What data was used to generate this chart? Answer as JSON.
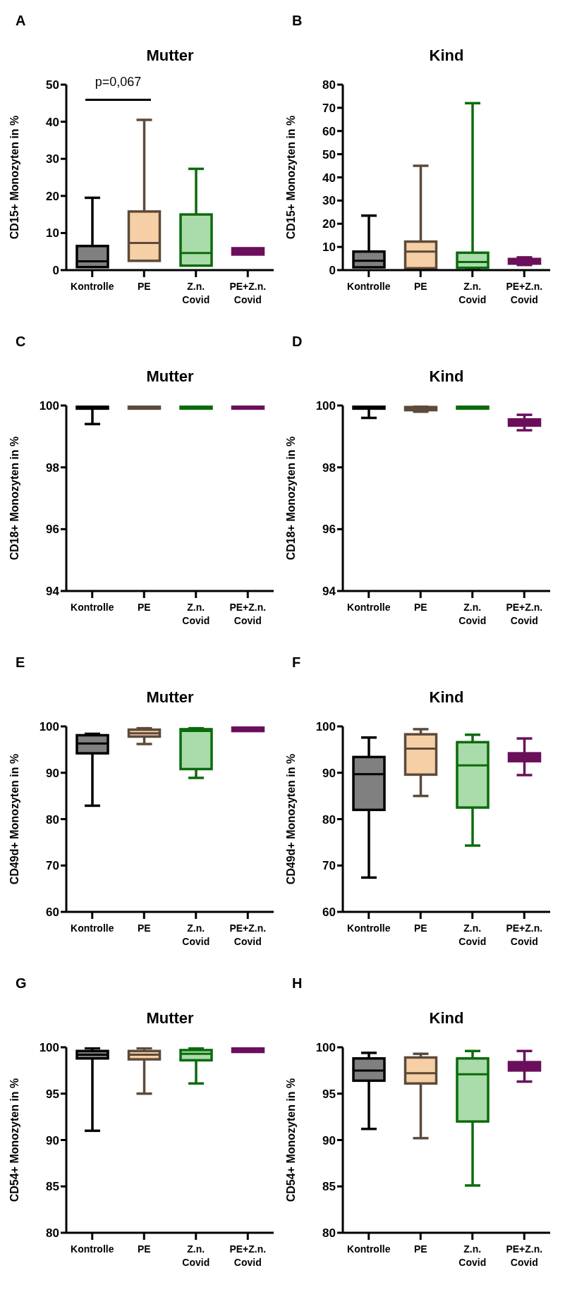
{
  "chart_data": [
    {
      "type": "box",
      "title": "Mutter",
      "ylabel": "CD15+ Monozyten in %",
      "annotations": [
        "A",
        "p=0,067"
      ],
      "categories": [
        "Kontrolle",
        "PE",
        "Z.n. Covid",
        "PE+Z.n. Covid"
      ],
      "colors": [
        "#000000",
        "#5c4a3a",
        "#0b6b0b",
        "#6b0f5b"
      ],
      "ylim": [
        0,
        50
      ],
      "yticks": [
        0,
        10,
        20,
        30,
        40,
        50
      ],
      "boxes": [
        {
          "low": null,
          "q1": 0.8,
          "median": 2.4,
          "q3": 6.5,
          "high": 19.5
        },
        {
          "low": null,
          "q1": 2.5,
          "median": 7.3,
          "q3": 15.8,
          "high": 40.5
        },
        {
          "low": null,
          "q1": 1.2,
          "median": 4.6,
          "q3": 15,
          "high": 27.3
        },
        {
          "low": 4.2,
          "q1": 4.2,
          "median": 5,
          "q3": 5.9,
          "high": 5.9
        }
      ]
    },
    {
      "type": "box",
      "title": "Kind",
      "ylabel": "CD15+ Monozyten in %",
      "annotations": [
        "B"
      ],
      "categories": [
        "Kontrolle",
        "PE",
        "Z.n. Covid",
        "PE+Z.n. Covid"
      ],
      "colors": [
        "#000000",
        "#5c4a3a",
        "#0b6b0b",
        "#6b0f5b"
      ],
      "ylim": [
        0,
        80
      ],
      "yticks": [
        0,
        10,
        20,
        30,
        40,
        50,
        60,
        70,
        80
      ],
      "boxes": [
        {
          "low": null,
          "q1": 1.2,
          "median": 4,
          "q3": 8,
          "high": 23.5
        },
        {
          "low": 0.2,
          "q1": 0.8,
          "median": 8,
          "q3": 12.3,
          "high": 45
        },
        {
          "low": 0.2,
          "q1": 1,
          "median": 3.5,
          "q3": 7.5,
          "high": 72
        },
        {
          "low": 2.2,
          "q1": 2.8,
          "median": 4,
          "q3": 4.8,
          "high": 5.5
        }
      ]
    },
    {
      "type": "box",
      "title": "Mutter",
      "ylabel": "CD18+ Monozyten in %",
      "annotations": [
        "C"
      ],
      "categories": [
        "Kontrolle",
        "PE",
        "Z.n. Covid",
        "PE+Z.n. Covid"
      ],
      "colors": [
        "#000000",
        "#5c4a3a",
        "#0b6b0b",
        "#6b0f5b"
      ],
      "ylim": [
        94,
        100
      ],
      "yticks": [
        94,
        96,
        98,
        100
      ],
      "boxes": [
        {
          "low": 99.4,
          "q1": 99.9,
          "median": 99.95,
          "q3": 99.97,
          "high": 99.97
        },
        {
          "low": 99.9,
          "q1": 99.9,
          "median": 99.95,
          "q3": 99.98,
          "high": 99.98
        },
        {
          "low": 99.9,
          "q1": 99.9,
          "median": 99.95,
          "q3": 99.98,
          "high": 99.98
        },
        {
          "low": 99.9,
          "q1": 99.9,
          "median": 99.95,
          "q3": 99.98,
          "high": 99.98
        }
      ]
    },
    {
      "type": "box",
      "title": "Kind",
      "ylabel": "CD18+ Monozyten in %",
      "annotations": [
        "D"
      ],
      "categories": [
        "Kontrolle",
        "PE",
        "Z.n. Covid",
        "PE+Z.n. Covid"
      ],
      "colors": [
        "#000000",
        "#5c4a3a",
        "#0b6b0b",
        "#6b0f5b"
      ],
      "ylim": [
        94,
        100
      ],
      "yticks": [
        94,
        96,
        98,
        100
      ],
      "boxes": [
        {
          "low": 99.6,
          "q1": 99.9,
          "median": 99.95,
          "q3": 99.97,
          "high": 99.97
        },
        {
          "low": 99.8,
          "q1": 99.85,
          "median": 99.9,
          "q3": 99.95,
          "high": 99.97
        },
        {
          "low": 99.9,
          "q1": 99.9,
          "median": 99.95,
          "q3": 99.98,
          "high": 99.98
        },
        {
          "low": 99.2,
          "q1": 99.35,
          "median": 99.45,
          "q3": 99.55,
          "high": 99.7
        }
      ]
    },
    {
      "type": "box",
      "title": "Mutter",
      "ylabel": "CD49d+ Monozyten in %",
      "annotations": [
        "E"
      ],
      "categories": [
        "Kontrolle",
        "PE",
        "Z.n. Covid",
        "PE+Z.n. Covid"
      ],
      "colors": [
        "#000000",
        "#5c4a3a",
        "#0b6b0b",
        "#6b0f5b"
      ],
      "ylim": [
        60,
        100
      ],
      "yticks": [
        60,
        70,
        80,
        90,
        100
      ],
      "boxes": [
        {
          "low": 82.9,
          "q1": 94.2,
          "median": 96.3,
          "q3": 98.1,
          "high": 98.4
        },
        {
          "low": 96.2,
          "q1": 97.8,
          "median": 98.5,
          "q3": 99.3,
          "high": 99.6
        },
        {
          "low": 88.9,
          "q1": 90.8,
          "median": 99,
          "q3": 99.4,
          "high": 99.6
        },
        {
          "low": 99,
          "q1": 99,
          "median": 99.4,
          "q3": 99.8,
          "high": 99.8
        }
      ]
    },
    {
      "type": "box",
      "title": "Kind",
      "ylabel": "CD49d+ Monozyten in %",
      "annotations": [
        "F"
      ],
      "categories": [
        "Kontrolle",
        "PE",
        "Z.n. Covid",
        "PE+Z.n. Covid"
      ],
      "colors": [
        "#000000",
        "#5c4a3a",
        "#0b6b0b",
        "#6b0f5b"
      ],
      "ylim": [
        60,
        100
      ],
      "yticks": [
        60,
        70,
        80,
        90,
        100
      ],
      "boxes": [
        {
          "low": 67.4,
          "q1": 82,
          "median": 89.7,
          "q3": 93.4,
          "high": 97.6
        },
        {
          "low": 85,
          "q1": 89.6,
          "median": 95.2,
          "q3": 98.3,
          "high": 99.4
        },
        {
          "low": 74.3,
          "q1": 82.5,
          "median": 91.6,
          "q3": 96.6,
          "high": 98.2
        },
        {
          "low": 89.5,
          "q1": 92.5,
          "median": 93.3,
          "q3": 94.2,
          "high": 97.4
        }
      ]
    },
    {
      "type": "box",
      "title": "Mutter",
      "ylabel": "CD54+ Monozyten in %",
      "annotations": [
        "G"
      ],
      "categories": [
        "Kontrolle",
        "PE",
        "Z.n. Covid",
        "PE+Z.n. Covid"
      ],
      "colors": [
        "#000000",
        "#5c4a3a",
        "#0b6b0b",
        "#6b0f5b"
      ],
      "ylim": [
        80,
        100
      ],
      "yticks": [
        80,
        85,
        90,
        95,
        100
      ],
      "boxes": [
        {
          "low": 91,
          "q1": 98.8,
          "median": 99.2,
          "q3": 99.6,
          "high": 99.9
        },
        {
          "low": 95,
          "q1": 98.7,
          "median": 99.2,
          "q3": 99.6,
          "high": 99.9
        },
        {
          "low": 96.1,
          "q1": 98.6,
          "median": 99.3,
          "q3": 99.7,
          "high": 99.9
        },
        {
          "low": 99.5,
          "q1": 99.5,
          "median": 99.7,
          "q3": 99.9,
          "high": 99.9
        }
      ]
    },
    {
      "type": "box",
      "title": "Kind",
      "ylabel": "CD54+ Monozyten in %",
      "annotations": [
        "H"
      ],
      "categories": [
        "Kontrolle",
        "PE",
        "Z.n. Covid",
        "PE+Z.n. Covid"
      ],
      "colors": [
        "#000000",
        "#5c4a3a",
        "#0b6b0b",
        "#6b0f5b"
      ],
      "ylim": [
        80,
        100
      ],
      "yticks": [
        80,
        85,
        90,
        95,
        100
      ],
      "boxes": [
        {
          "low": 91.2,
          "q1": 96.4,
          "median": 97.5,
          "q3": 98.8,
          "high": 99.4
        },
        {
          "low": 90.2,
          "q1": 96.1,
          "median": 97.2,
          "q3": 98.9,
          "high": 99.3
        },
        {
          "low": 85.1,
          "q1": 92,
          "median": 97.1,
          "q3": 98.8,
          "high": 99.6
        },
        {
          "low": 96.3,
          "q1": 97.5,
          "median": 98,
          "q3": 98.4,
          "high": 99.6
        }
      ]
    }
  ]
}
